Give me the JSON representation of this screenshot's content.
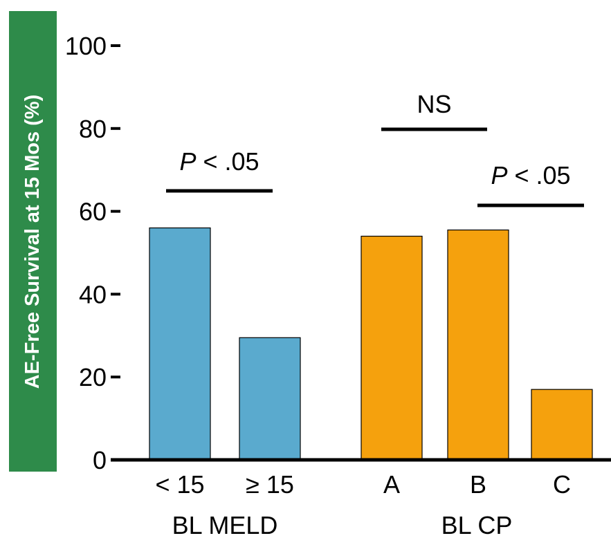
{
  "chart_data": {
    "type": "bar",
    "ylabel": "AE-Free Survival at 15 Mos (%)",
    "ylim": [
      0,
      100
    ],
    "yticks": [
      "0",
      "20",
      "40",
      "60",
      "80",
      "100"
    ],
    "ytick_values": [
      0,
      20,
      40,
      60,
      80,
      100
    ],
    "groups": [
      {
        "name": "BL MELD",
        "categories": [
          "< 15",
          "≥ 15"
        ],
        "values": [
          56,
          29.5
        ],
        "color": "#5aaace"
      },
      {
        "name": "BL CP",
        "categories": [
          "A",
          "B",
          "C"
        ],
        "values": [
          54,
          55.5,
          17
        ],
        "color": "#f5a10d"
      }
    ],
    "annotations": [
      {
        "label": "P < .05",
        "p_symbol": "P",
        "rest": " < .05",
        "between": [
          "< 15",
          "≥ 15"
        ]
      },
      {
        "label": "NS",
        "between": [
          "A",
          "B"
        ]
      },
      {
        "label": "P < .05",
        "p_symbol": "P",
        "rest": " < .05",
        "between": [
          "B",
          "C"
        ]
      }
    ]
  },
  "colors": {
    "ylabel_background": "#2e8b4a",
    "axis": "#000000"
  }
}
